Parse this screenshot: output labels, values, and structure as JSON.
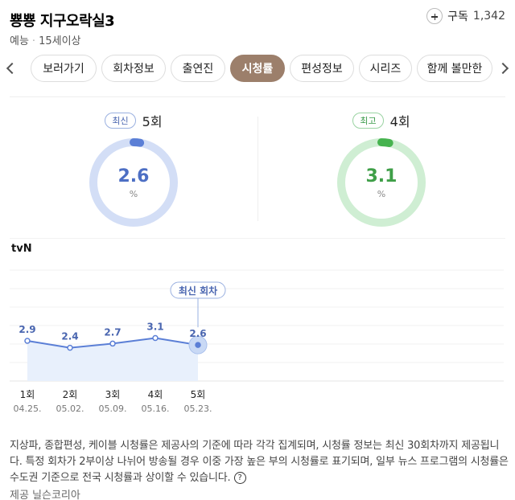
{
  "header": {
    "title": "뿅뿅 지구오락실3",
    "genre": "예능",
    "rating": "15세이상",
    "subscribe_label": "구독",
    "subscribe_count": "1,342"
  },
  "tabs": [
    {
      "label": "보러가기"
    },
    {
      "label": "회차정보"
    },
    {
      "label": "출연진"
    },
    {
      "label": "시청률",
      "active": true
    },
    {
      "label": "편성정보"
    },
    {
      "label": "시리즈"
    },
    {
      "label": "함께 볼만한"
    }
  ],
  "stats": {
    "latest": {
      "badge": "최신",
      "episode": "5회",
      "value": "2.6",
      "unit": "%",
      "fraction": 0.026,
      "color": "#5b7fd6",
      "track": "#d3def6"
    },
    "best": {
      "badge": "최고",
      "episode": "4회",
      "value": "3.1",
      "unit": "%",
      "fraction": 0.031,
      "color": "#46b34f",
      "track": "#cfeed3"
    }
  },
  "channel": "tvN",
  "chart_data": {
    "type": "line",
    "categories": [
      "1회",
      "2회",
      "3회",
      "4회",
      "5회"
    ],
    "dates": [
      "04.25.",
      "05.02.",
      "05.09.",
      "05.16.",
      "05.23."
    ],
    "values": [
      2.9,
      2.4,
      2.7,
      3.1,
      2.6
    ],
    "value_labels": [
      "2.9",
      "2.4",
      "2.7",
      "3.1",
      "2.6"
    ],
    "callout": "최신 회차",
    "ylim": [
      0,
      8
    ],
    "grid": true,
    "line_color": "#5b7fd6",
    "fill_color": "#e8f0fc"
  },
  "footnote": {
    "text": "지상파, 종합편성, 케이블 시청률은 제공사의 기준에 따라 각각 집계되며, 시청률 정보는 최신 30회차까지 제공됩니다. 특정 회차가 2부이상 나뉘어 방송될 경우 이중 가장 높은 부의 시청률로 표기되며, 일부 뉴스 프로그램의 시청률은 수도권 기준으로 전국 시청률과 상이할 수 있습니다.",
    "help_icon": "question-icon"
  },
  "provider": "제공 닐슨코리아"
}
